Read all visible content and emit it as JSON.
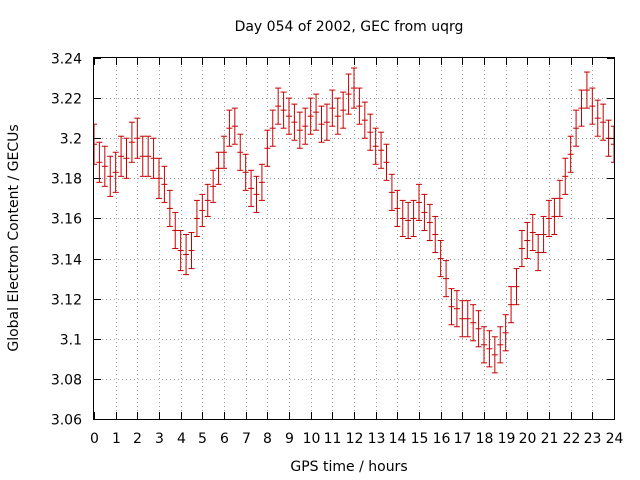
{
  "chart_data": {
    "type": "scatter",
    "style": "errorbars",
    "title": "Day 054 of 2002, GEC from uqrg",
    "xlabel": "GPS time / hours",
    "ylabel": "Global Electron Content / GECUs",
    "xlim": [
      0,
      24
    ],
    "ylim": [
      3.06,
      3.24
    ],
    "grid": true,
    "legend": "none",
    "series_color": "#c80000",
    "x_ticks": [
      "0",
      "1",
      "2",
      "3",
      "4",
      "5",
      "6",
      "7",
      "8",
      "9",
      "10",
      "11",
      "12",
      "13",
      "14",
      "15",
      "16",
      "17",
      "18",
      "19",
      "20",
      "21",
      "22",
      "23",
      "24"
    ],
    "y_ticks": [
      "3.06",
      "3.08",
      "3.1",
      "3.12",
      "3.14",
      "3.16",
      "3.18",
      "3.2",
      "3.22",
      "3.24"
    ],
    "series": [
      {
        "points": [
          {
            "x": 0.0,
            "y": 3.197,
            "err": 0.01
          },
          {
            "x": 0.25,
            "y": 3.188,
            "err": 0.01
          },
          {
            "x": 0.5,
            "y": 3.186,
            "err": 0.01
          },
          {
            "x": 0.75,
            "y": 3.181,
            "err": 0.01
          },
          {
            "x": 1.0,
            "y": 3.183,
            "err": 0.01
          },
          {
            "x": 1.25,
            "y": 3.191,
            "err": 0.01
          },
          {
            "x": 1.5,
            "y": 3.19,
            "err": 0.01
          },
          {
            "x": 1.75,
            "y": 3.198,
            "err": 0.01
          },
          {
            "x": 2.0,
            "y": 3.2,
            "err": 0.01
          },
          {
            "x": 2.25,
            "y": 3.191,
            "err": 0.01
          },
          {
            "x": 2.5,
            "y": 3.191,
            "err": 0.01
          },
          {
            "x": 2.75,
            "y": 3.19,
            "err": 0.01
          },
          {
            "x": 3.0,
            "y": 3.18,
            "err": 0.01
          },
          {
            "x": 3.25,
            "y": 3.177,
            "err": 0.009
          },
          {
            "x": 3.5,
            "y": 3.165,
            "err": 0.009
          },
          {
            "x": 3.75,
            "y": 3.154,
            "err": 0.009
          },
          {
            "x": 4.0,
            "y": 3.144,
            "err": 0.01
          },
          {
            "x": 4.25,
            "y": 3.142,
            "err": 0.01
          },
          {
            "x": 4.5,
            "y": 3.144,
            "err": 0.009
          },
          {
            "x": 4.75,
            "y": 3.16,
            "err": 0.009
          },
          {
            "x": 5.0,
            "y": 3.164,
            "err": 0.008
          },
          {
            "x": 5.25,
            "y": 3.169,
            "err": 0.008
          },
          {
            "x": 5.5,
            "y": 3.176,
            "err": 0.008
          },
          {
            "x": 5.75,
            "y": 3.185,
            "err": 0.008
          },
          {
            "x": 6.0,
            "y": 3.193,
            "err": 0.008
          },
          {
            "x": 6.25,
            "y": 3.205,
            "err": 0.009
          },
          {
            "x": 6.5,
            "y": 3.206,
            "err": 0.009
          },
          {
            "x": 6.75,
            "y": 3.193,
            "err": 0.009
          },
          {
            "x": 7.0,
            "y": 3.183,
            "err": 0.009
          },
          {
            "x": 7.25,
            "y": 3.175,
            "err": 0.009
          },
          {
            "x": 7.5,
            "y": 3.172,
            "err": 0.009
          },
          {
            "x": 7.75,
            "y": 3.178,
            "err": 0.009
          },
          {
            "x": 8.0,
            "y": 3.195,
            "err": 0.009
          },
          {
            "x": 8.25,
            "y": 3.205,
            "err": 0.009
          },
          {
            "x": 8.5,
            "y": 3.216,
            "err": 0.009
          },
          {
            "x": 8.75,
            "y": 3.214,
            "err": 0.009
          },
          {
            "x": 9.0,
            "y": 3.211,
            "err": 0.009
          },
          {
            "x": 9.25,
            "y": 3.208,
            "err": 0.009
          },
          {
            "x": 9.5,
            "y": 3.204,
            "err": 0.009
          },
          {
            "x": 9.75,
            "y": 3.206,
            "err": 0.009
          },
          {
            "x": 10.0,
            "y": 3.211,
            "err": 0.009
          },
          {
            "x": 10.25,
            "y": 3.213,
            "err": 0.009
          },
          {
            "x": 10.5,
            "y": 3.207,
            "err": 0.009
          },
          {
            "x": 10.75,
            "y": 3.208,
            "err": 0.009
          },
          {
            "x": 11.0,
            "y": 3.215,
            "err": 0.009
          },
          {
            "x": 11.25,
            "y": 3.211,
            "err": 0.009
          },
          {
            "x": 11.5,
            "y": 3.214,
            "err": 0.009
          },
          {
            "x": 11.75,
            "y": 3.222,
            "err": 0.01
          },
          {
            "x": 12.0,
            "y": 3.225,
            "err": 0.01
          },
          {
            "x": 12.25,
            "y": 3.216,
            "err": 0.009
          },
          {
            "x": 12.5,
            "y": 3.209,
            "err": 0.009
          },
          {
            "x": 12.75,
            "y": 3.203,
            "err": 0.009
          },
          {
            "x": 13.0,
            "y": 3.196,
            "err": 0.009
          },
          {
            "x": 13.25,
            "y": 3.194,
            "err": 0.009
          },
          {
            "x": 13.5,
            "y": 3.188,
            "err": 0.009
          },
          {
            "x": 13.75,
            "y": 3.173,
            "err": 0.009
          },
          {
            "x": 14.0,
            "y": 3.165,
            "err": 0.009
          },
          {
            "x": 14.25,
            "y": 3.16,
            "err": 0.009
          },
          {
            "x": 14.5,
            "y": 3.159,
            "err": 0.009
          },
          {
            "x": 14.75,
            "y": 3.16,
            "err": 0.009
          },
          {
            "x": 15.0,
            "y": 3.168,
            "err": 0.009
          },
          {
            "x": 15.25,
            "y": 3.163,
            "err": 0.009
          },
          {
            "x": 15.5,
            "y": 3.158,
            "err": 0.009
          },
          {
            "x": 15.75,
            "y": 3.152,
            "err": 0.009
          },
          {
            "x": 16.0,
            "y": 3.14,
            "err": 0.009
          },
          {
            "x": 16.25,
            "y": 3.13,
            "err": 0.009
          },
          {
            "x": 16.5,
            "y": 3.116,
            "err": 0.009
          },
          {
            "x": 16.75,
            "y": 3.115,
            "err": 0.009
          },
          {
            "x": 17.0,
            "y": 3.11,
            "err": 0.009
          },
          {
            "x": 17.25,
            "y": 3.11,
            "err": 0.009
          },
          {
            "x": 17.5,
            "y": 3.108,
            "err": 0.009
          },
          {
            "x": 17.75,
            "y": 3.105,
            "err": 0.009
          },
          {
            "x": 18.0,
            "y": 3.097,
            "err": 0.009
          },
          {
            "x": 18.25,
            "y": 3.095,
            "err": 0.009
          },
          {
            "x": 18.5,
            "y": 3.092,
            "err": 0.009
          },
          {
            "x": 18.75,
            "y": 3.097,
            "err": 0.009
          },
          {
            "x": 19.0,
            "y": 3.103,
            "err": 0.009
          },
          {
            "x": 19.25,
            "y": 3.117,
            "err": 0.009
          },
          {
            "x": 19.5,
            "y": 3.126,
            "err": 0.009
          },
          {
            "x": 19.75,
            "y": 3.145,
            "err": 0.009
          },
          {
            "x": 20.0,
            "y": 3.149,
            "err": 0.009
          },
          {
            "x": 20.25,
            "y": 3.153,
            "err": 0.009
          },
          {
            "x": 20.5,
            "y": 3.143,
            "err": 0.009
          },
          {
            "x": 20.75,
            "y": 3.152,
            "err": 0.009
          },
          {
            "x": 21.0,
            "y": 3.16,
            "err": 0.009
          },
          {
            "x": 21.25,
            "y": 3.161,
            "err": 0.009
          },
          {
            "x": 21.5,
            "y": 3.17,
            "err": 0.009
          },
          {
            "x": 21.75,
            "y": 3.181,
            "err": 0.009
          },
          {
            "x": 22.0,
            "y": 3.192,
            "err": 0.009
          },
          {
            "x": 22.25,
            "y": 3.205,
            "err": 0.009
          },
          {
            "x": 22.5,
            "y": 3.215,
            "err": 0.009
          },
          {
            "x": 22.75,
            "y": 3.224,
            "err": 0.009
          },
          {
            "x": 23.0,
            "y": 3.216,
            "err": 0.009
          },
          {
            "x": 23.25,
            "y": 3.21,
            "err": 0.009
          },
          {
            "x": 23.5,
            "y": 3.208,
            "err": 0.009
          },
          {
            "x": 23.75,
            "y": 3.2,
            "err": 0.009
          },
          {
            "x": 24.0,
            "y": 3.197,
            "err": 0.009
          }
        ]
      }
    ]
  }
}
